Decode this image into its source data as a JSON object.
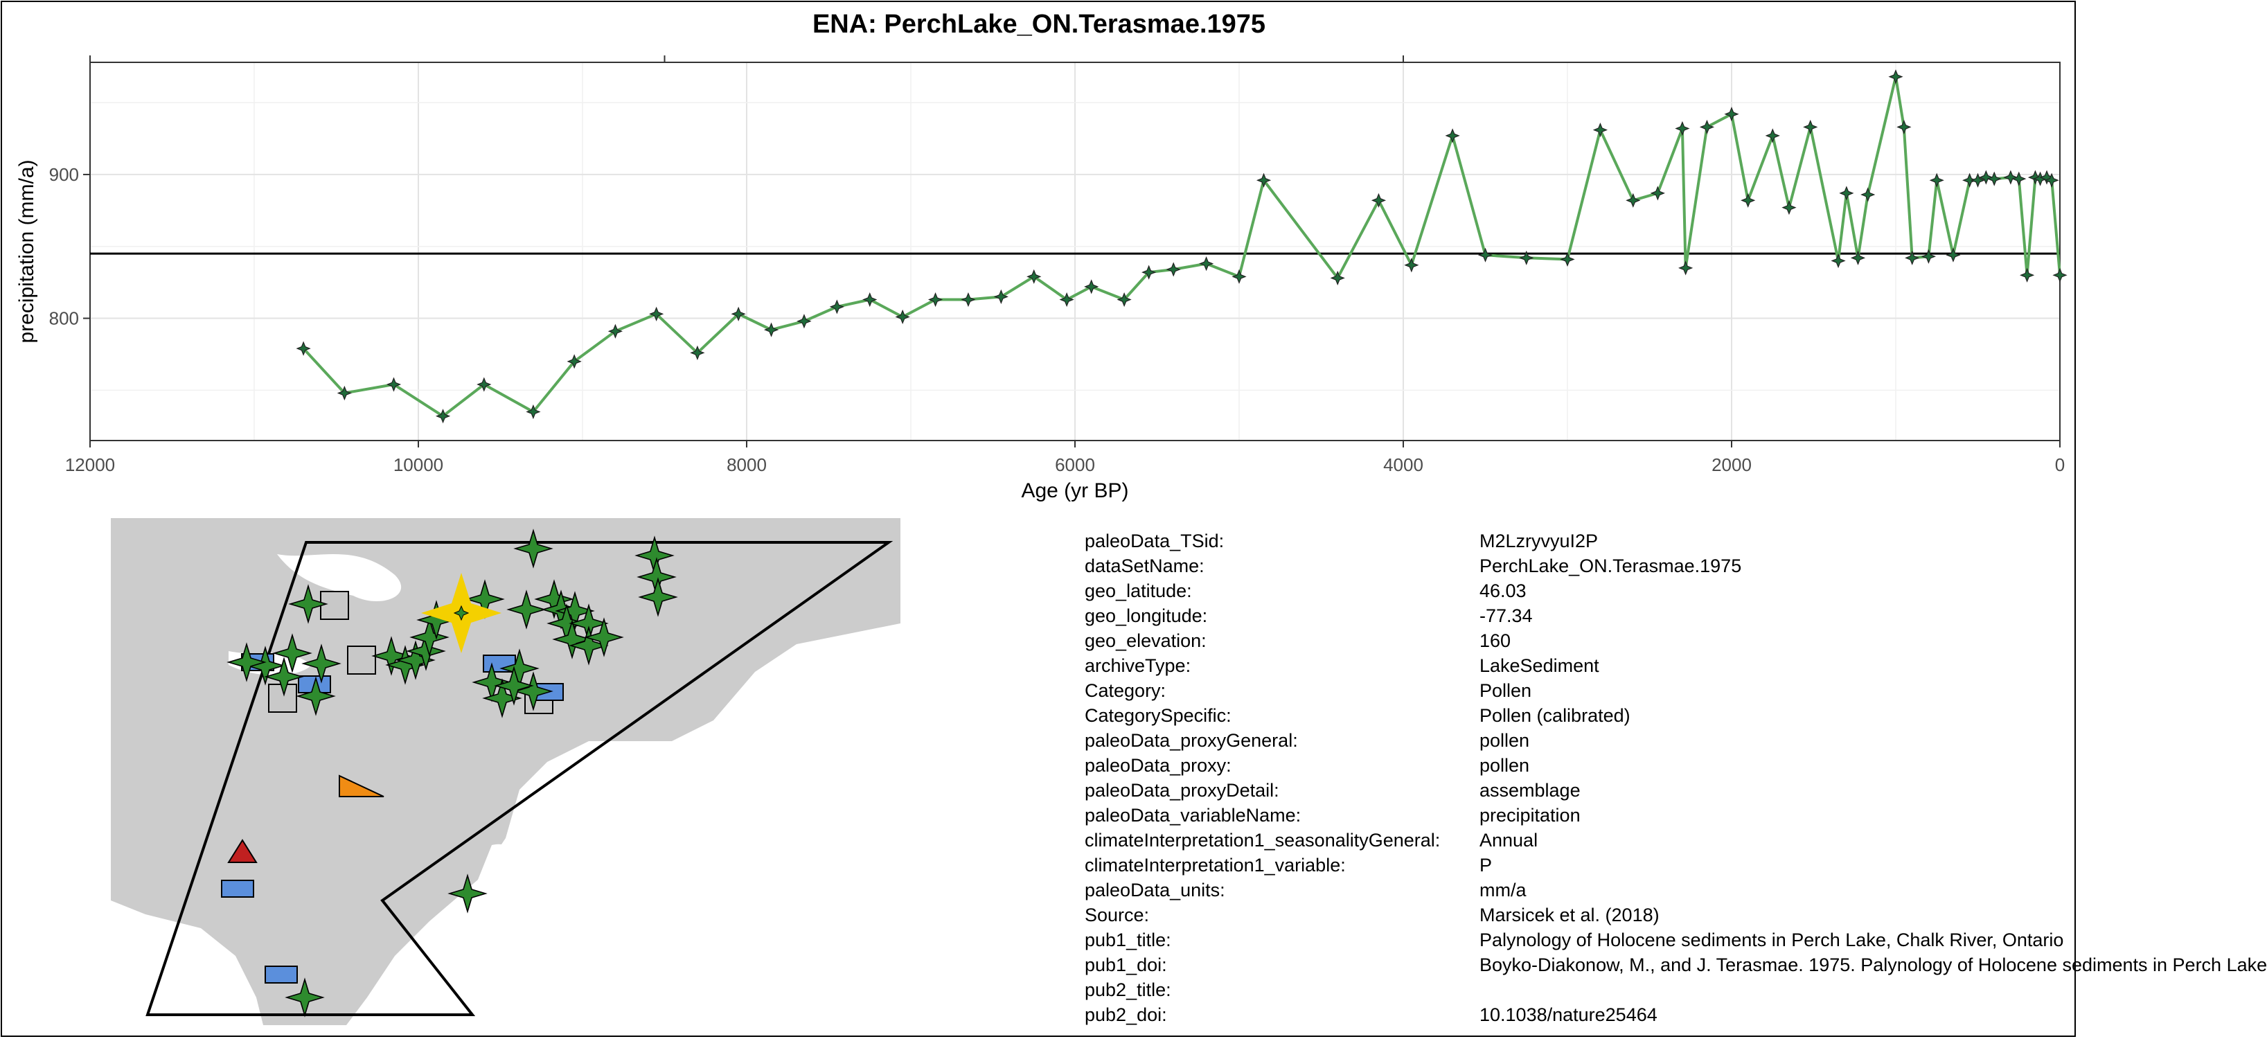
{
  "title": "ENA: PerchLake_ON.Terasmae.1975",
  "chart_data": {
    "type": "line",
    "title": "ENA: PerchLake_ON.Terasmae.1975",
    "xlabel": "Age (yr BP)",
    "ylabel": "precipitation (mm/a)",
    "x_reversed": true,
    "xlim": [
      12000,
      0
    ],
    "ylim": [
      715,
      978
    ],
    "x_ticks": [
      "12000",
      "10000",
      "8000",
      "6000",
      "4000",
      "2000",
      "0"
    ],
    "x_tick_values": [
      12000,
      10000,
      8000,
      6000,
      4000,
      2000,
      0
    ],
    "y_ticks": [
      "800",
      "900"
    ],
    "y_tick_values": [
      800,
      900
    ],
    "grid": true,
    "reference_line": 845,
    "line_color": "#5aa85a",
    "marker_color": "#1f6b3a",
    "series": [
      {
        "x": [
          10700,
          10450,
          10150,
          9850,
          9600,
          9300,
          9050,
          8800,
          8550,
          8300,
          8050,
          7850,
          7650,
          7450,
          7250,
          7050,
          6850,
          6650,
          6450,
          6250,
          6050,
          5900,
          5700,
          5550,
          5400,
          5200,
          5000,
          4850,
          4400,
          4150,
          3950,
          3700,
          3500,
          3250,
          3000,
          2800,
          2600,
          2450,
          2300,
          2280,
          2150,
          2000,
          1900,
          1750,
          1650,
          1520,
          1350,
          1300,
          1230,
          1170,
          1000,
          950,
          900,
          800,
          750,
          650,
          550,
          500,
          450,
          400,
          300,
          250,
          200,
          150,
          120,
          80,
          50,
          0
        ],
        "values": [
          779,
          748,
          754,
          732,
          754,
          735,
          770,
          791,
          803,
          776,
          803,
          792,
          798,
          808,
          813,
          801,
          813,
          813,
          815,
          829,
          813,
          822,
          813,
          832,
          834,
          838,
          829,
          896,
          828,
          882,
          837,
          927,
          844,
          842,
          841,
          931,
          882,
          887,
          932,
          835,
          933,
          942,
          882,
          927,
          877,
          933,
          840,
          887,
          842,
          886,
          968,
          933,
          842,
          843,
          896,
          844,
          896,
          896,
          898,
          897,
          898,
          897,
          830,
          898,
          897,
          898,
          896,
          830
        ]
      }
    ]
  },
  "map": {
    "land_color": "#cccccc",
    "ocean_color": "#ffffff",
    "outline_color": "#000000",
    "symbols": [
      "green-star",
      "gray-square",
      "blue-rectangle",
      "orange-triangle",
      "red-triangle",
      "yellow-star"
    ],
    "symbol_colors": {
      "green-star": "#2e8b2e",
      "gray-square": "#c8c8c8",
      "blue-rectangle": "#5b8fdc",
      "orange-triangle": "#f08c14",
      "red-triangle": "#c02020",
      "yellow-star": "#f4d000"
    }
  },
  "metadata": [
    {
      "key": "paleoData_TSid:",
      "value": "M2LzryvyuI2P"
    },
    {
      "key": "dataSetName:",
      "value": "PerchLake_ON.Terasmae.1975"
    },
    {
      "key": "geo_latitude:",
      "value": "46.03"
    },
    {
      "key": "geo_longitude:",
      "value": "-77.34"
    },
    {
      "key": "geo_elevation:",
      "value": "160"
    },
    {
      "key": "archiveType:",
      "value": "LakeSediment"
    },
    {
      "key": "Category:",
      "value": "Pollen"
    },
    {
      "key": "CategorySpecific:",
      "value": "Pollen (calibrated)"
    },
    {
      "key": "paleoData_proxyGeneral:",
      "value": "pollen"
    },
    {
      "key": "paleoData_proxy:",
      "value": "pollen"
    },
    {
      "key": "paleoData_proxyDetail:",
      "value": "assemblage"
    },
    {
      "key": "paleoData_variableName:",
      "value": "precipitation"
    },
    {
      "key": "climateInterpretation1_seasonalityGeneral:",
      "value": "Annual"
    },
    {
      "key": "climateInterpretation1_variable:",
      "value": "P"
    },
    {
      "key": "paleoData_units:",
      "value": "mm/a"
    },
    {
      "key": "Source:",
      "value": "Marsicek et al. (2018)"
    },
    {
      "key": "pub1_title:",
      "value": "Palynology of Holocene sediments in Perch Lake, Chalk River, Ontario"
    },
    {
      "key": "pub1_doi:",
      "value": "Boyko-Diakonow, M., and J. Terasmae. 1975. Palynology of Holocene sediments in Perch Lake"
    },
    {
      "key": "pub2_title:",
      "value": ""
    },
    {
      "key": "pub2_doi:",
      "value": "10.1038/nature25464"
    }
  ]
}
